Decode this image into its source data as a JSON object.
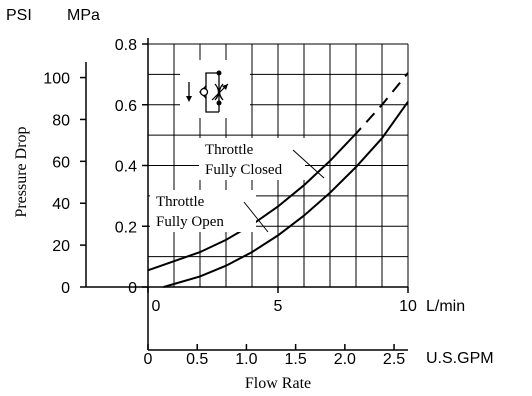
{
  "chart_data": {
    "type": "line",
    "xlabel": "Flow Rate",
    "ylabel": "Pressure Drop",
    "x_unit": "L/min",
    "x_unit2": "U.S.GPM",
    "y_unit_left": "PSI",
    "y_unit_right": "MPa",
    "xlim": [
      0,
      10
    ],
    "ylim_mpa": [
      0,
      0.8
    ],
    "grid": true,
    "legend": "annotations",
    "x_ticks": [
      "0",
      "5",
      "10"
    ],
    "x_ticks_gpm": [
      "0",
      "0.5",
      "1.0",
      "1.5",
      "2.0",
      "2.5"
    ],
    "y_ticks_psi": [
      "0",
      "20",
      "40",
      "60",
      "80",
      "100"
    ],
    "y_ticks_mpa": [
      "0",
      "0.2",
      "0.4",
      "0.6",
      "0.8"
    ],
    "series": [
      {
        "name": "Throttle Fully Closed",
        "label_lines": [
          "Throttle",
          "Fully Closed"
        ],
        "x": [
          0,
          1,
          2,
          3,
          4,
          5,
          6,
          7,
          8,
          9,
          10
        ],
        "y": [
          0.055,
          0.085,
          0.115,
          0.155,
          0.205,
          0.265,
          0.335,
          0.415,
          0.505,
          0.6,
          0.705
        ]
      },
      {
        "name": "Throttle Fully Open",
        "label_lines": [
          "Throttle",
          "Fully Open"
        ],
        "x": [
          0.6,
          1,
          2,
          3,
          4,
          5,
          6,
          7,
          8,
          9,
          10
        ],
        "y": [
          0,
          0.01,
          0.035,
          0.07,
          0.115,
          0.17,
          0.235,
          0.31,
          0.395,
          0.49,
          0.61
        ]
      }
    ]
  }
}
